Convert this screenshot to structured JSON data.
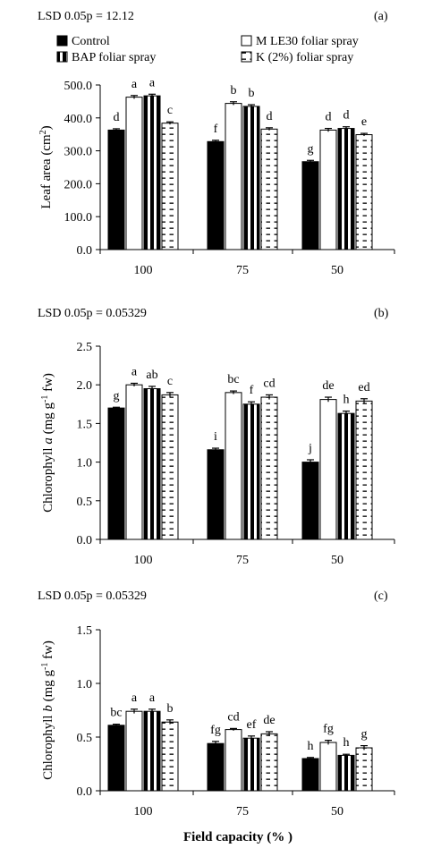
{
  "legend": {
    "items": [
      {
        "label": "Control",
        "pattern": "solid",
        "color": "#000000"
      },
      {
        "label": "M LE30 foliar spray",
        "pattern": "white",
        "color": "#ffffff"
      },
      {
        "label": "BAP foliar spray",
        "pattern": "vstripe",
        "color": "#000000"
      },
      {
        "label": "K (2%) foliar spray",
        "pattern": "dash",
        "color": "#ffffff"
      }
    ]
  },
  "xlabel": "Field capacity (% )",
  "chart_data": [
    {
      "type": "bar",
      "panel": "(a)",
      "lsd": "LSD 0.05p = 12.12",
      "ylabel_main": "Leaf area (cm",
      "ylabel_sup": "2",
      "ylabel_end": ")",
      "categories": [
        "100",
        "75",
        "50"
      ],
      "ylim": [
        0,
        500
      ],
      "yticks": [
        0,
        100,
        200,
        300,
        400,
        500
      ],
      "ytick_labels": [
        "0.0",
        "100.0",
        "200.0",
        "300.0",
        "400.0",
        "500.0"
      ],
      "series": [
        {
          "name": "Control",
          "values": [
            363,
            328,
            267
          ],
          "err": [
            4,
            4,
            4
          ],
          "letters": [
            "d",
            "f",
            "g"
          ]
        },
        {
          "name": "M LE30 foliar spray",
          "values": [
            463,
            444,
            363
          ],
          "err": [
            5,
            5,
            5
          ],
          "letters": [
            "a",
            "b",
            "d"
          ]
        },
        {
          "name": "BAP foliar spray",
          "values": [
            467,
            435,
            368
          ],
          "err": [
            5,
            5,
            5
          ],
          "letters": [
            "a",
            "b",
            "d"
          ]
        },
        {
          "name": "K (2%) foliar spray",
          "values": [
            384,
            366,
            349
          ],
          "err": [
            4,
            4,
            4
          ],
          "letters": [
            "c",
            "d",
            "e"
          ]
        }
      ]
    },
    {
      "type": "bar",
      "panel": "(b)",
      "lsd": "LSD 0.05p = 0.05329",
      "ylabel_main": "Chlorophyll",
      "ylabel_italic": "a",
      "ylabel_unit": "(mg g",
      "ylabel_sup": "-1",
      "ylabel_end": "fw)",
      "categories": [
        "100",
        "75",
        "50"
      ],
      "ylim": [
        0,
        2.5
      ],
      "yticks": [
        0,
        0.5,
        1,
        1.5,
        2,
        2.5
      ],
      "ytick_labels": [
        "0.0",
        "0.5",
        "1.0",
        "1.5",
        "2.0",
        "2.5"
      ],
      "series": [
        {
          "name": "Control",
          "values": [
            1.7,
            1.16,
            1.0
          ],
          "err": [
            0.01,
            0.02,
            0.03
          ],
          "letters": [
            "g",
            "i",
            "j"
          ]
        },
        {
          "name": "M LE30 foliar spray",
          "values": [
            2.0,
            1.9,
            1.81
          ],
          "err": [
            0.02,
            0.02,
            0.03
          ],
          "letters": [
            "a",
            "bc",
            "de"
          ]
        },
        {
          "name": "BAP foliar spray",
          "values": [
            1.95,
            1.75,
            1.63
          ],
          "err": [
            0.03,
            0.03,
            0.03
          ],
          "letters": [
            "ab",
            "f",
            "h"
          ]
        },
        {
          "name": "K (2%) foliar spray",
          "values": [
            1.87,
            1.84,
            1.79
          ],
          "err": [
            0.03,
            0.03,
            0.03
          ],
          "letters": [
            "c",
            "cd",
            "ed"
          ]
        }
      ]
    },
    {
      "type": "bar",
      "panel": "(c)",
      "lsd": "LSD 0.05p = 0.05329",
      "ylabel_main": "Chlorophyll",
      "ylabel_italic": "b",
      "ylabel_unit": "(mg g",
      "ylabel_sup": "-1",
      "ylabel_end": "fw)",
      "categories": [
        "100",
        "75",
        "50"
      ],
      "ylim": [
        0,
        1.5
      ],
      "yticks": [
        0,
        0.5,
        1,
        1.5
      ],
      "ytick_labels": [
        "0.0",
        "0.5",
        "1.0",
        "1.5"
      ],
      "series": [
        {
          "name": "Control",
          "values": [
            0.61,
            0.44,
            0.3
          ],
          "err": [
            0.01,
            0.02,
            0.01
          ],
          "letters": [
            "bc",
            "fg",
            "h"
          ]
        },
        {
          "name": "M LE30 foliar spray",
          "values": [
            0.74,
            0.57,
            0.45
          ],
          "err": [
            0.02,
            0.01,
            0.02
          ],
          "letters": [
            "a",
            "cd",
            "fg"
          ]
        },
        {
          "name": "BAP foliar spray",
          "values": [
            0.74,
            0.49,
            0.33
          ],
          "err": [
            0.02,
            0.02,
            0.01
          ],
          "letters": [
            "a",
            "ef",
            "h"
          ]
        },
        {
          "name": "K (2%) foliar spray",
          "values": [
            0.64,
            0.53,
            0.4
          ],
          "err": [
            0.02,
            0.02,
            0.02
          ],
          "letters": [
            "b",
            "de",
            "g"
          ]
        }
      ]
    }
  ]
}
